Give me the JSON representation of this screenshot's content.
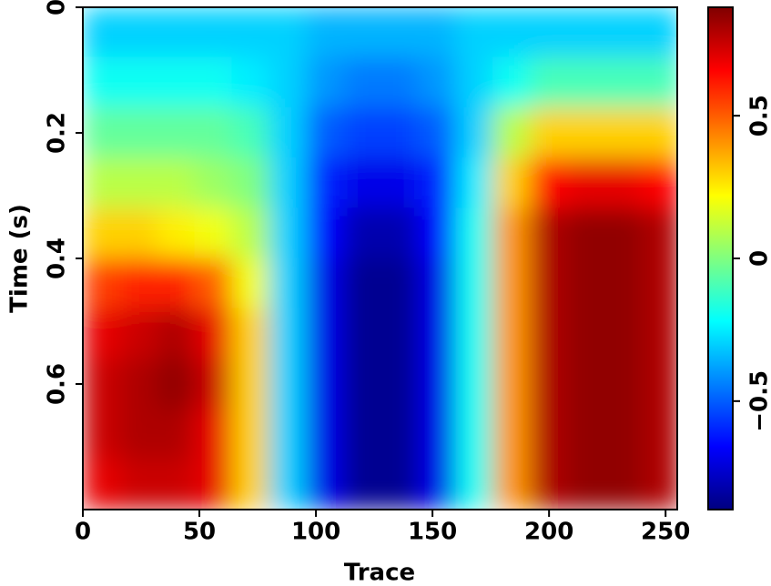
{
  "chart_data": {
    "type": "heatmap",
    "colormap": "jet",
    "x_label": "Trace",
    "y_label": "Time (s)",
    "x": [
      8,
      24,
      40,
      56,
      72,
      88,
      104,
      120,
      136,
      152,
      168,
      184,
      200,
      216,
      232,
      248
    ],
    "y": [
      0.04,
      0.12,
      0.2,
      0.28,
      0.36,
      0.44,
      0.52,
      0.6,
      0.68,
      0.76
    ],
    "values": [
      [
        -0.3,
        -0.3,
        -0.3,
        -0.3,
        -0.3,
        -0.3,
        -0.35,
        -0.35,
        -0.35,
        -0.35,
        -0.3,
        -0.3,
        -0.3,
        -0.3,
        -0.3,
        -0.3
      ],
      [
        -0.2,
        -0.2,
        -0.2,
        -0.2,
        -0.25,
        -0.3,
        -0.4,
        -0.45,
        -0.45,
        -0.4,
        -0.3,
        -0.2,
        -0.1,
        -0.1,
        -0.1,
        -0.1
      ],
      [
        -0.05,
        -0.05,
        -0.05,
        -0.05,
        -0.1,
        -0.3,
        -0.5,
        -0.55,
        -0.55,
        -0.5,
        -0.3,
        0.1,
        0.3,
        0.3,
        0.3,
        0.3
      ],
      [
        0.1,
        0.1,
        0.1,
        0.05,
        0,
        -0.3,
        -0.6,
        -0.7,
        -0.7,
        -0.6,
        -0.25,
        0.3,
        0.65,
        0.7,
        0.7,
        0.65
      ],
      [
        0.3,
        0.3,
        0.25,
        0.2,
        0.1,
        -0.3,
        -0.65,
        -0.8,
        -0.8,
        -0.65,
        -0.2,
        0.4,
        0.8,
        0.85,
        0.85,
        0.8
      ],
      [
        0.55,
        0.6,
        0.6,
        0.5,
        0.2,
        -0.3,
        -0.7,
        -0.85,
        -0.85,
        -0.7,
        -0.2,
        0.4,
        0.8,
        0.85,
        0.85,
        0.8
      ],
      [
        0.7,
        0.75,
        0.8,
        0.7,
        0.3,
        -0.3,
        -0.7,
        -0.85,
        -0.85,
        -0.7,
        -0.2,
        0.4,
        0.8,
        0.85,
        0.85,
        0.8
      ],
      [
        0.75,
        0.8,
        0.85,
        0.75,
        0.3,
        -0.3,
        -0.7,
        -0.85,
        -0.85,
        -0.7,
        -0.2,
        0.4,
        0.8,
        0.85,
        0.85,
        0.8
      ],
      [
        0.75,
        0.8,
        0.8,
        0.7,
        0.3,
        -0.3,
        -0.7,
        -0.85,
        -0.85,
        -0.7,
        -0.2,
        0.4,
        0.8,
        0.85,
        0.85,
        0.8
      ],
      [
        0.7,
        0.75,
        0.75,
        0.7,
        0.3,
        -0.3,
        -0.7,
        -0.85,
        -0.85,
        -0.7,
        -0.2,
        0.4,
        0.8,
        0.85,
        0.85,
        0.8
      ]
    ],
    "xlim": [
      0,
      255
    ],
    "xticks": [
      0,
      50,
      100,
      150,
      200,
      250
    ],
    "ylim": [
      0,
      0.8
    ],
    "yticks": [
      0,
      0.2,
      0.4,
      0.6
    ],
    "y_inverted": true,
    "clim": [
      -0.88,
      0.88
    ],
    "cticks": [
      {
        "value": -0.5,
        "label": "−0.5"
      },
      0,
      0.5
    ]
  }
}
